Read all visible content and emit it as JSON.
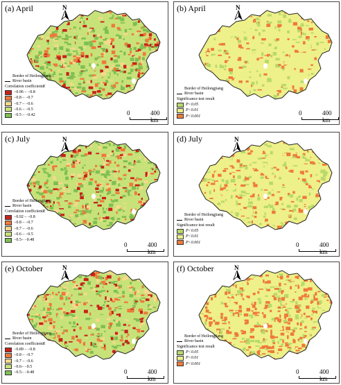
{
  "panels": [
    {
      "title": "(a) April",
      "legend_kind": "corr",
      "legend_heading": "Correlation coefficient R",
      "legend_items": [
        {
          "label": "−0.96 – −0.8",
          "color": "#c8221a"
        },
        {
          "label": "−0.8 – −0.7",
          "color": "#ee7a3a"
        },
        {
          "label": "−0.7 – −0.6",
          "color": "#f6d98c"
        },
        {
          "label": "−0.6 – −0.5",
          "color": "#c8e27a"
        },
        {
          "label": "−0.5 – −0.42",
          "color": "#7fbf52"
        }
      ]
    },
    {
      "title": "(b) April",
      "legend_kind": "sig",
      "legend_heading": "Significance test result",
      "legend_items": [
        {
          "label": "P<0.05",
          "color": "#b7d96a"
        },
        {
          "label": "P<0.01",
          "color": "#eef08a"
        },
        {
          "label": "P<0.001",
          "color": "#ee7a3a"
        }
      ]
    },
    {
      "title": "(c) July",
      "legend_kind": "corr",
      "legend_heading": "Correlation coefficient R",
      "legend_items": [
        {
          "label": "−0.92 – −0.8",
          "color": "#c8221a"
        },
        {
          "label": "−0.8 – −0.7",
          "color": "#ee7a3a"
        },
        {
          "label": "−0.7 – −0.6",
          "color": "#f6d98c"
        },
        {
          "label": "−0.6 – −0.5",
          "color": "#c8e27a"
        },
        {
          "label": "−0.5– −0.48",
          "color": "#7fbf52"
        }
      ]
    },
    {
      "title": "(d) July",
      "legend_kind": "sig",
      "legend_heading": "Significance test result",
      "legend_items": [
        {
          "label": "P<0.05",
          "color": "#b7d96a"
        },
        {
          "label": "P<0.01",
          "color": "#eef08a"
        },
        {
          "label": "P<0.001",
          "color": "#ee7a3a"
        }
      ]
    },
    {
      "title": "(e) October",
      "legend_kind": "corr",
      "legend_heading": "Correlation coefficient R",
      "legend_items": [
        {
          "label": "−0.89 – −0.8",
          "color": "#c8221a"
        },
        {
          "label": "−0.8 – −0.7",
          "color": "#ee7a3a"
        },
        {
          "label": "−0.7 – −0.6",
          "color": "#f6d98c"
        },
        {
          "label": "−0.6– −0.5",
          "color": "#c8e27a"
        },
        {
          "label": "−0.5– −0.48",
          "color": "#7fbf52"
        }
      ]
    },
    {
      "title": "(f) October",
      "legend_kind": "sig",
      "legend_heading": "Significance test result",
      "legend_items": [
        {
          "label": "P<0.05",
          "color": "#b7d96a"
        },
        {
          "label": "P<0.01",
          "color": "#eef08a"
        },
        {
          "label": "P<0.001",
          "color": "#ee7a3a"
        }
      ]
    }
  ],
  "common": {
    "border_label_line1": "Border of Heilongjiang",
    "border_label_line2": "River basin",
    "north_label": "N",
    "scale_zero": "0",
    "scale_distance": "400 km"
  },
  "colors": {
    "red": "#c8221a",
    "orange": "#ee7a3a",
    "yellow": "#eef08a",
    "lightgreen": "#c8e27a",
    "green": "#7fbf52",
    "sig_green": "#b7d96a"
  }
}
